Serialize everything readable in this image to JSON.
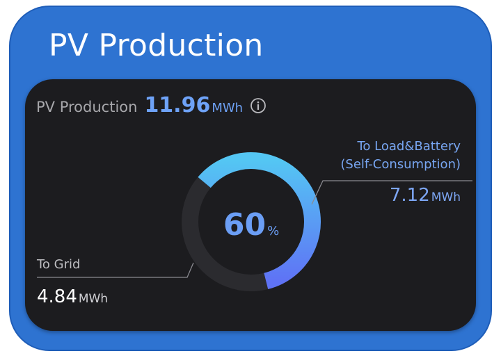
{
  "page_title": "PV Production",
  "header": {
    "label": "PV Production",
    "value": "11.96",
    "unit": "MWh",
    "info_icon": "info-circle-icon"
  },
  "gauge": {
    "percent_value": "60",
    "percent_unit": "%",
    "fraction": 0.6,
    "colors": {
      "track": "#2b2b2f",
      "arc_start": "#54c6f3",
      "arc_end": "#5f73f5"
    }
  },
  "self_consumption": {
    "label_line1": "To Load&Battery",
    "label_line2": "(Self-Consumption)",
    "value": "7.12",
    "unit": "MWh"
  },
  "to_grid": {
    "label": "To Grid",
    "value": "4.84",
    "unit": "MWh"
  },
  "colors": {
    "frame": "#2e73d1",
    "card": "#1c1c1f",
    "accent": "#6ea2f7"
  }
}
